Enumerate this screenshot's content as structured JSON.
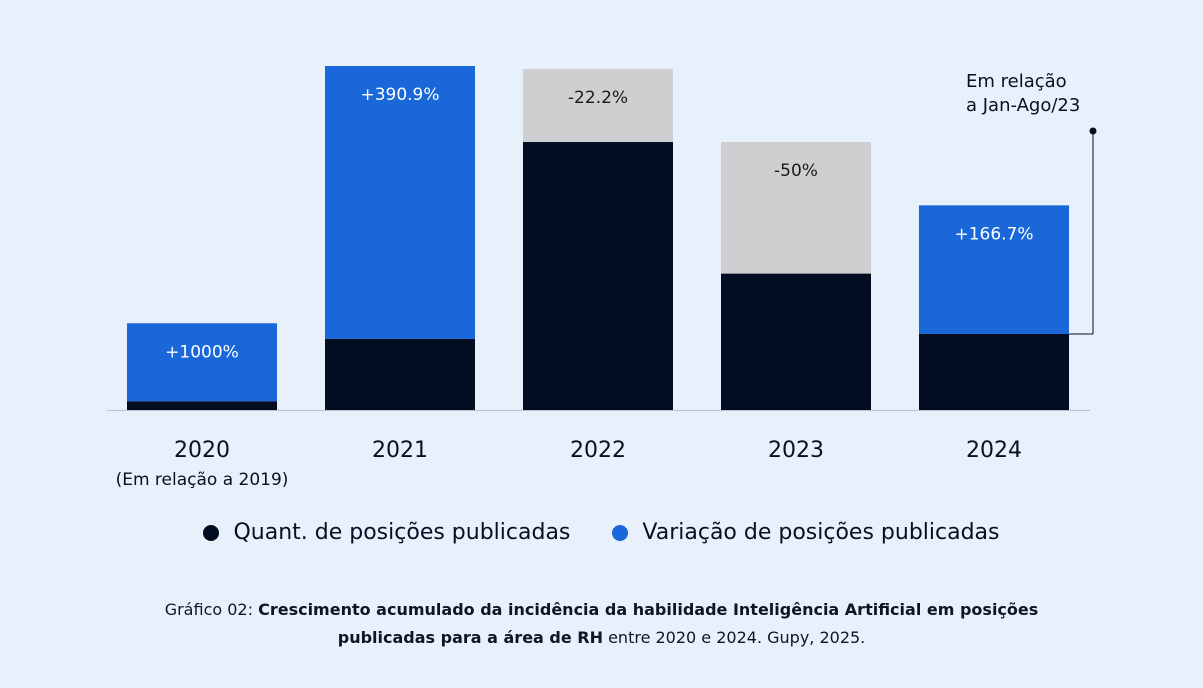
{
  "chart_data": {
    "type": "bar",
    "stacked": true,
    "categories": [
      "2020",
      "2021",
      "2022",
      "2023",
      "2024"
    ],
    "category_subtitles": [
      "(Em relação a 2019)",
      "",
      "",
      "",
      ""
    ],
    "series": [
      {
        "name": "Quant. de posições publicadas",
        "color": "#020d22",
        "values": [
          0.9,
          7.3,
          27.5,
          14.0,
          7.8
        ]
      },
      {
        "name": "Variação de posições publicadas",
        "values": [
          8.0,
          28.0,
          7.5,
          13.5,
          13.2
        ]
      }
    ],
    "segment_colors": [
      [
        "#020d22",
        "#1967d9"
      ],
      [
        "#020d22",
        "#1967d9"
      ],
      [
        "#020d22",
        "#cfcfd1"
      ],
      [
        "#020d22",
        "#cfcfd1"
      ],
      [
        "#020d22",
        "#1967d9"
      ]
    ],
    "data_labels": [
      "+1000%",
      "+390.9%",
      "-22.2%",
      "-50%",
      "+166.7%"
    ],
    "annotation": {
      "line1": "Em relação",
      "line2": "a Jan-Ago/23"
    },
    "ylim": [
      0,
      35.3
    ]
  },
  "legend": {
    "items": [
      {
        "label": "Quant. de posições publicadas",
        "color": "#020d22"
      },
      {
        "label": "Variação de posições publicadas",
        "color": "#1967d9"
      }
    ]
  },
  "caption": {
    "prefix": "Gráfico 02: ",
    "bold": "Crescimento acumulado da incidência da habilidade Inteligência Artificial em posições publicadas para a área de RH",
    "suffix": " entre 2020 e 2024. Gupy, 2025."
  }
}
